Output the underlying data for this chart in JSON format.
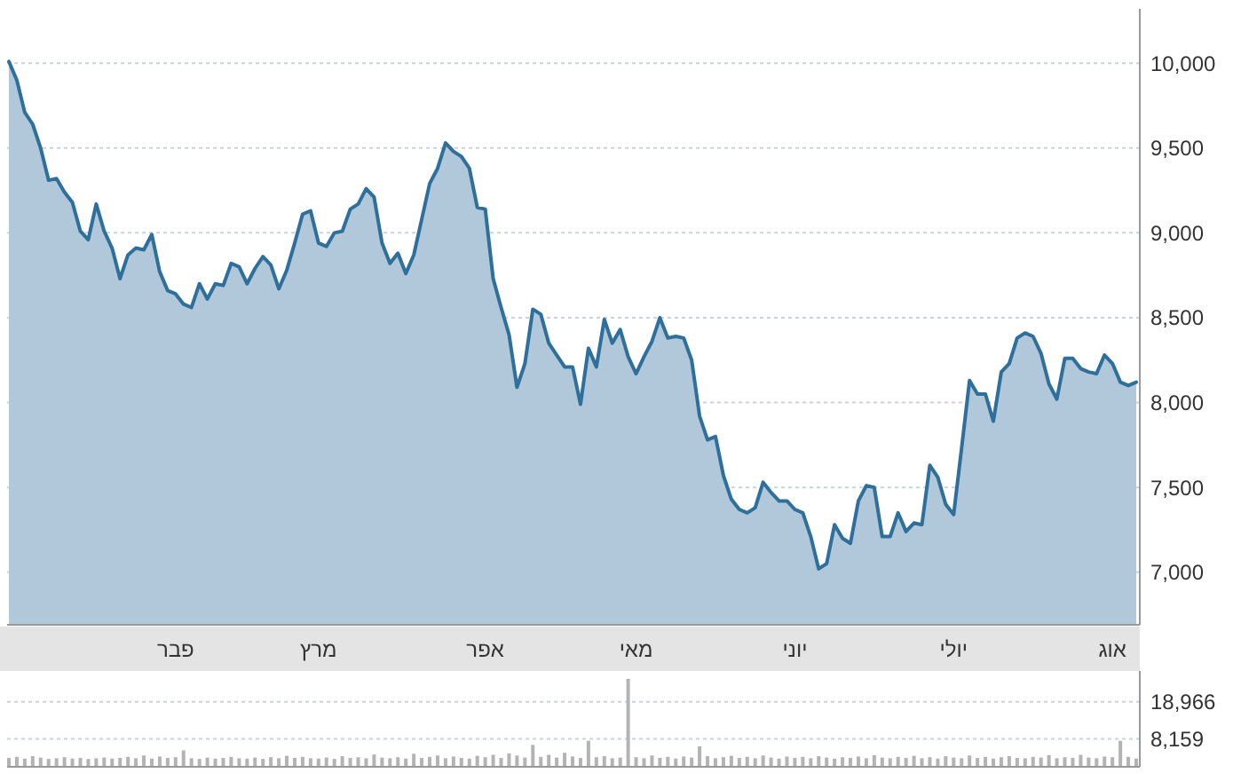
{
  "chart_data": [
    {
      "type": "area",
      "categories": [
        null,
        null,
        null,
        null,
        null,
        null,
        null,
        null,
        null,
        null,
        null,
        null,
        null,
        null,
        null,
        null,
        null,
        null,
        null,
        null,
        null,
        "פבר",
        null,
        null,
        null,
        null,
        null,
        null,
        null,
        null,
        null,
        null,
        null,
        null,
        null,
        null,
        null,
        null,
        null,
        "מרץ",
        null,
        null,
        null,
        null,
        null,
        null,
        null,
        null,
        null,
        null,
        null,
        null,
        null,
        null,
        null,
        null,
        null,
        null,
        null,
        null,
        "אפר",
        null,
        null,
        null,
        null,
        null,
        null,
        null,
        null,
        null,
        null,
        null,
        null,
        null,
        null,
        null,
        null,
        null,
        null,
        "מאי",
        null,
        null,
        null,
        null,
        null,
        null,
        null,
        null,
        null,
        null,
        null,
        null,
        null,
        null,
        null,
        null,
        null,
        null,
        null,
        "יוני",
        null,
        null,
        null,
        null,
        null,
        null,
        null,
        null,
        null,
        null,
        null,
        null,
        null,
        null,
        null,
        null,
        null,
        null,
        null,
        "יולי",
        null,
        null,
        null,
        null,
        null,
        null,
        null,
        null,
        null,
        null,
        null,
        null,
        null,
        null,
        null,
        null,
        null,
        null,
        null,
        "אוג",
        null,
        null,
        null
      ],
      "series": [
        {
          "color": "#2f6f9c",
          "values": [
            10010,
            9900,
            9710,
            9640,
            9500,
            9310,
            9320,
            9240,
            9180,
            9010,
            8960,
            9170,
            9010,
            8910,
            8730,
            8870,
            8910,
            8900,
            8990,
            8770,
            8660,
            8640,
            8580,
            8560,
            8700,
            8610,
            8700,
            8690,
            8820,
            8800,
            8700,
            8790,
            8860,
            8810,
            8670,
            8780,
            8940,
            9110,
            9130,
            8940,
            8920,
            9000,
            9010,
            9140,
            9170,
            9260,
            9210,
            8940,
            8820,
            8880,
            8760,
            8870,
            9080,
            9290,
            9380,
            9530,
            9480,
            9450,
            9380,
            9150,
            9140,
            8730,
            8560,
            8400,
            8090,
            8230,
            8550,
            8520,
            8350,
            8280,
            8210,
            8210,
            7990,
            8320,
            8210,
            8490,
            8350,
            8430,
            8270,
            8170,
            8270,
            8360,
            8500,
            8380,
            8390,
            8380,
            8250,
            7920,
            7780,
            7800,
            7570,
            7430,
            7370,
            7350,
            7380,
            7530,
            7470,
            7420,
            7420,
            7370,
            7350,
            7210,
            7020,
            7050,
            7280,
            7200,
            7170,
            7420,
            7510,
            7500,
            7210,
            7210,
            7350,
            7240,
            7290,
            7280,
            7630,
            7560,
            7400,
            7340,
            7730,
            8130,
            8050,
            8050,
            7890,
            8180,
            8230,
            8380,
            8410,
            8390,
            8290,
            8110,
            8020,
            8260,
            8260,
            8200,
            8180,
            8170,
            8280,
            8230,
            8120,
            8100,
            8120
          ]
        }
      ],
      "ylim": [
        6690,
        10320
      ],
      "yticks": [
        {
          "value": 7000,
          "label": "7,000"
        },
        {
          "value": 7500,
          "label": "7,500"
        },
        {
          "value": 8000,
          "label": "8,000"
        },
        {
          "value": 8500,
          "label": "8,500"
        },
        {
          "value": 9000,
          "label": "9,000"
        },
        {
          "value": 9500,
          "label": "9,500"
        },
        {
          "value": 10000,
          "label": "10,000"
        }
      ],
      "grid": "y"
    },
    {
      "type": "bar",
      "categories": [
        null,
        null,
        null,
        null,
        null,
        null,
        null,
        null,
        null,
        null,
        null,
        null,
        null,
        null,
        null,
        null,
        null,
        null,
        null,
        null,
        null,
        null,
        null,
        null,
        null,
        null,
        null,
        null,
        null,
        null,
        null,
        null,
        null,
        null,
        null,
        null,
        null,
        null,
        null,
        null,
        null,
        null,
        null,
        null,
        null,
        null,
        null,
        null,
        null,
        null,
        null,
        null,
        null,
        null,
        null,
        null,
        null,
        null,
        null,
        null,
        null,
        null,
        null,
        null,
        null,
        null,
        null,
        null,
        null,
        null,
        null,
        null,
        null,
        null,
        null,
        null,
        null,
        null,
        null,
        null,
        null,
        null,
        null,
        null,
        null,
        null,
        null,
        null,
        null,
        null,
        null,
        null,
        null,
        null,
        null,
        null,
        null,
        null,
        null,
        null,
        null,
        null,
        null,
        null,
        null,
        null,
        null,
        null,
        null,
        null,
        null,
        null,
        null,
        null,
        null,
        null,
        null,
        null,
        null,
        null,
        null,
        null,
        null,
        null,
        null,
        null,
        null,
        null,
        null,
        null,
        null,
        null,
        null,
        null,
        null,
        null,
        null,
        null,
        null,
        null,
        null,
        null,
        null
      ],
      "series": [
        {
          "color": "#b3b3b3",
          "values": [
            2600,
            2900,
            2400,
            3100,
            2700,
            2300,
            2500,
            2800,
            2400,
            2600,
            2300,
            2500,
            2700,
            2400,
            2600,
            2900,
            2500,
            3300,
            2400,
            3000,
            2600,
            2800,
            4800,
            2500,
            2300,
            2700,
            2400,
            2600,
            2900,
            2500,
            2400,
            2700,
            2300,
            2800,
            2500,
            3200,
            2600,
            2900,
            2500,
            2400,
            2700,
            2300,
            3100,
            2600,
            2800,
            2500,
            3600,
            2700,
            2500,
            2800,
            2400,
            3800,
            2600,
            2900,
            3300,
            2500,
            3000,
            2600,
            2400,
            3200,
            2800,
            3500,
            2600,
            3900,
            3300,
            2700,
            6400,
            2900,
            3500,
            2700,
            4100,
            3000,
            2600,
            7600,
            2800,
            3100,
            2500,
            2700,
            25700,
            2800,
            2500,
            3300,
            2600,
            2900,
            2400,
            3000,
            2700,
            6000,
            3100,
            2500,
            2800,
            3200,
            2600,
            2900,
            2500,
            3300,
            2700,
            2400,
            3000,
            2600,
            2900,
            2500,
            3100,
            2700,
            2400,
            2800,
            2600,
            3000,
            2500,
            3400,
            2700,
            2500,
            2900,
            2600,
            3200,
            2500,
            2800,
            2400,
            3100,
            2700,
            2500,
            3300,
            2600,
            2900,
            2400,
            2800,
            3100,
            2600,
            2500,
            2900,
            2700,
            3400,
            2500,
            2800,
            2600,
            3500,
            2700,
            2500,
            3000,
            2800,
            7600,
            2900,
            2400
          ]
        }
      ],
      "ylim": [
        0,
        28000
      ],
      "yticks": [
        {
          "value": 8159,
          "label": "8,159"
        },
        {
          "value": 18966,
          "label": "18,966"
        }
      ],
      "grid": "y",
      "tick_labels": "y"
    }
  ]
}
